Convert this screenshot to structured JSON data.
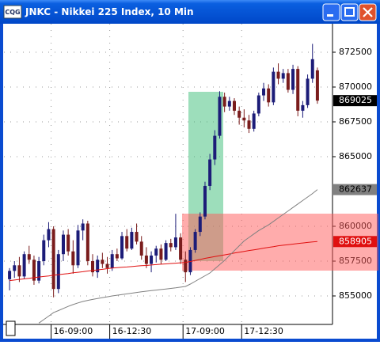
{
  "window": {
    "title": "JNKC - Nikkei 225 Index, 10 Min",
    "icon_text": "CQG"
  },
  "chart_data": {
    "type": "candlestick",
    "categories": [
      null,
      null,
      null,
      null,
      null,
      null,
      null,
      null,
      null,
      "16-09:00",
      null,
      null,
      null,
      null,
      null,
      null,
      null,
      null,
      null,
      null,
      null,
      "16-12:30",
      null,
      null,
      null,
      null,
      null,
      null,
      null,
      null,
      null,
      null,
      null,
      null,
      null,
      null,
      "17-09:00",
      null,
      null,
      null,
      null,
      null,
      null,
      null,
      null,
      null,
      null,
      null,
      "17-12:30",
      null,
      null,
      null,
      null,
      null,
      null,
      null,
      null,
      null,
      null,
      null,
      null,
      null,
      null,
      null
    ],
    "open": [
      856200,
      856800,
      857200,
      856400,
      858000,
      857600,
      856100,
      857500,
      859000,
      859800,
      855500,
      858000,
      859400,
      858200,
      857200,
      859700,
      860200,
      857500,
      856700,
      857600,
      857300,
      857000,
      858000,
      857700,
      859300,
      858400,
      859600,
      858900,
      857900,
      857300,
      857900,
      858400,
      857600,
      858800,
      858500,
      859200,
      857600,
      856700,
      858300,
      859600,
      860700,
      862900,
      864800,
      866500,
      869300,
      868600,
      869000,
      868300,
      867800,
      867600,
      867000,
      868100,
      869400,
      869900,
      868900,
      871100,
      870600,
      871000,
      869800,
      871300,
      868300,
      868700,
      870600,
      871200
    ],
    "high": [
      857000,
      857500,
      857800,
      858200,
      858600,
      857900,
      857800,
      859400,
      860300,
      860000,
      858300,
      859700,
      859800,
      859000,
      860100,
      860500,
      860400,
      858000,
      857900,
      858100,
      857800,
      858300,
      858400,
      859600,
      859800,
      859900,
      860200,
      859300,
      858500,
      858200,
      858600,
      858700,
      859000,
      859100,
      860900,
      859500,
      858200,
      858500,
      859800,
      861000,
      863200,
      865200,
      866900,
      869700,
      869600,
      869300,
      869200,
      868600,
      868400,
      868000,
      868300,
      869600,
      870300,
      870200,
      871400,
      871700,
      871300,
      871300,
      871600,
      871500,
      869000,
      870900,
      873100,
      871400
    ],
    "low": [
      855400,
      856300,
      856000,
      856200,
      857300,
      855800,
      855900,
      857200,
      858500,
      854900,
      855200,
      857500,
      857900,
      856600,
      857000,
      859000,
      857200,
      856400,
      856300,
      857000,
      856600,
      856800,
      857500,
      857600,
      858200,
      858300,
      858700,
      857600,
      857000,
      856700,
      857400,
      857300,
      857500,
      858200,
      858300,
      857300,
      856000,
      856500,
      858100,
      859300,
      860500,
      862600,
      864400,
      866300,
      868200,
      868300,
      868000,
      867300,
      867100,
      866700,
      866800,
      867900,
      869000,
      868600,
      868700,
      870200,
      870300,
      869600,
      869500,
      867900,
      867800,
      868500,
      870300,
      868800
    ],
    "close": [
      856800,
      857200,
      856400,
      858000,
      857600,
      856100,
      857500,
      859000,
      859800,
      855500,
      858000,
      859400,
      858200,
      857200,
      859700,
      860200,
      857500,
      856700,
      857600,
      857300,
      857000,
      858000,
      857700,
      859300,
      858400,
      859600,
      858900,
      857900,
      857300,
      857900,
      858400,
      857600,
      858800,
      858500,
      859200,
      857600,
      856700,
      858300,
      859600,
      860700,
      862900,
      864800,
      866500,
      869300,
      868600,
      869000,
      868300,
      867800,
      867600,
      867000,
      868100,
      869400,
      869900,
      868900,
      871100,
      870600,
      871000,
      869800,
      871300,
      868300,
      868700,
      870600,
      872000,
      869025
    ],
    "up_color": "#1c1c78",
    "down_color": "#7a1c1c",
    "lines": [
      {
        "color": "#e01010",
        "values": [
          856100,
          856140,
          856190,
          856230,
          856270,
          856310,
          856360,
          856400,
          856440,
          856490,
          856530,
          856570,
          856610,
          856660,
          856700,
          856740,
          856790,
          856830,
          856870,
          856910,
          856960,
          857000,
          857030,
          857060,
          857080,
          857110,
          857140,
          857170,
          857190,
          857220,
          857250,
          857280,
          857300,
          857330,
          857350,
          857380,
          857400,
          857470,
          857550,
          857620,
          857700,
          857760,
          857830,
          857890,
          857950,
          858010,
          858080,
          858140,
          858200,
          858260,
          858310,
          858370,
          858430,
          858490,
          858540,
          858600,
          858640,
          858680,
          858720,
          858760,
          858800,
          858840,
          858880,
          858905
        ]
      },
      {
        "color": "#808080",
        "values": [
          null,
          null,
          null,
          null,
          null,
          null,
          853050,
          853300,
          853550,
          853800,
          853950,
          854100,
          854250,
          854380,
          854500,
          854600,
          854680,
          854750,
          854820,
          854880,
          854940,
          855000,
          855050,
          855100,
          855150,
          855200,
          855250,
          855300,
          855340,
          855380,
          855420,
          855460,
          855500,
          855540,
          855580,
          855630,
          855680,
          855850,
          856050,
          856250,
          856450,
          856650,
          856950,
          857250,
          857550,
          857900,
          858250,
          858600,
          858950,
          859200,
          859450,
          859700,
          859900,
          860100,
          860350,
          860600,
          860850,
          861100,
          861350,
          861600,
          861850,
          862100,
          862350,
          862637
        ]
      }
    ],
    "ylim": [
      852955,
      874545
    ],
    "yticks": [
      855000,
      857500,
      860000,
      865000,
      867500,
      870000,
      872500
    ],
    "grid": true
  }
}
